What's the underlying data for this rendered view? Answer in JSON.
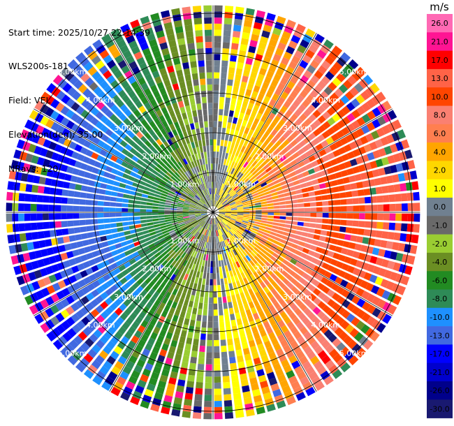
{
  "header": {
    "start_time": "Start time: 2025/10/27 22:14:39",
    "site": "WLS200s-181",
    "field": "Field: VEL",
    "elevation": "Elevation(deg): 35.00",
    "nrays": "NRays: 120"
  },
  "colorbar": {
    "unit": "m/s",
    "ticks": [
      "26.0",
      "21.0",
      "17.0",
      "13.0",
      "10.0",
      "8.0",
      "6.0",
      "4.0",
      "2.0",
      "1.0",
      "0.0",
      "-1.0",
      "-2.0",
      "-4.0",
      "-6.0",
      "-8.0",
      "-10.0",
      "-13.0",
      "-17.0",
      "-21.0",
      "-26.0",
      "-30.0"
    ],
    "colors": [
      "#ff69b4",
      "#ff1493",
      "#ff0000",
      "#ff6347",
      "#ff4500",
      "#fa8072",
      "#ff7f50",
      "#ffa500",
      "#ffd700",
      "#ffff00",
      "#708090",
      "#696969",
      "#9acd32",
      "#6b8e23",
      "#228b22",
      "#2e8b57",
      "#1e90ff",
      "#4169e1",
      "#0000ff",
      "#0000cd",
      "#00008b",
      "#191970"
    ]
  },
  "chart_data": {
    "type": "ppi",
    "field": "VEL",
    "units": "m/s",
    "elevation_deg": 35.0,
    "nrays": 120,
    "vmin": -30.0,
    "vmax": 26.0,
    "range_rings_km": [
      1.0,
      2.0,
      3.0,
      4.0,
      5.0
    ],
    "ring_labels": [
      "1.00km",
      "2.00km",
      "3.00km",
      "4.00km",
      "5.00km"
    ],
    "pattern": "dipole",
    "approaching_azimuth_deg": 270,
    "receding_azimuth_deg": 90,
    "max_range_km": 5.2
  }
}
